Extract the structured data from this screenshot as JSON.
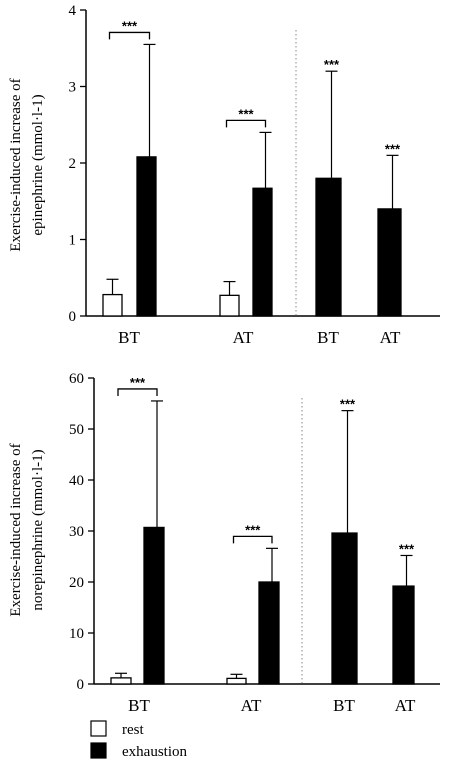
{
  "chart_data": [
    {
      "type": "bar",
      "ylabel_lines": [
        "Exercise-induced increase of",
        "epinephrine (mmol·l-1)"
      ],
      "ylim": [
        0,
        4
      ],
      "yticks": [
        "0",
        "1",
        "2",
        "3",
        "4"
      ],
      "groups": [
        {
          "label": "BT",
          "bars": [
            {
              "series": "rest",
              "value": 0.28,
              "error": 0.2
            },
            {
              "series": "exhaustion",
              "value": 2.08,
              "error": 1.47
            }
          ],
          "significance": "***",
          "bracket": true
        },
        {
          "label": "AT",
          "bars": [
            {
              "series": "rest",
              "value": 0.27,
              "error": 0.18
            },
            {
              "series": "exhaustion",
              "value": 1.67,
              "error": 0.73
            }
          ],
          "significance": "***",
          "bracket": true
        },
        {
          "label": "BT",
          "bars": [
            {
              "series": "exhaustion",
              "value": 1.8,
              "error": 1.4
            }
          ],
          "significance": "***",
          "bracket": false
        },
        {
          "label": "AT",
          "bars": [
            {
              "series": "exhaustion",
              "value": 1.4,
              "error": 0.7
            }
          ],
          "significance": "***",
          "bracket": false
        }
      ]
    },
    {
      "type": "bar",
      "ylabel_lines": [
        "Exercise-induced increase of",
        "norepinephrine (mmol·l-1)"
      ],
      "ylim": [
        0,
        60
      ],
      "yticks": [
        "0",
        "10",
        "20",
        "30",
        "40",
        "50",
        "60"
      ],
      "groups": [
        {
          "label": "BT",
          "bars": [
            {
              "series": "rest",
              "value": 1.2,
              "error": 0.9
            },
            {
              "series": "exhaustion",
              "value": 30.7,
              "error": 24.8
            }
          ],
          "significance": "***",
          "bracket": true
        },
        {
          "label": "AT",
          "bars": [
            {
              "series": "rest",
              "value": 1.1,
              "error": 0.8
            },
            {
              "series": "exhaustion",
              "value": 20.0,
              "error": 6.6
            }
          ],
          "significance": "***",
          "bracket": true
        },
        {
          "label": "BT",
          "bars": [
            {
              "series": "exhaustion",
              "value": 29.6,
              "error": 24.0
            }
          ],
          "significance": "***",
          "bracket": false
        },
        {
          "label": "AT",
          "bars": [
            {
              "series": "exhaustion",
              "value": 19.2,
              "error": 6.0
            }
          ],
          "significance": "***",
          "bracket": false
        }
      ]
    }
  ],
  "legend": [
    {
      "name": "rest",
      "color": "#ffffff"
    },
    {
      "name": "exhaustion",
      "color": "#000000"
    }
  ],
  "colors": {
    "rest": "#ffffff",
    "exhaustion": "#000000",
    "stroke": "#000000"
  }
}
